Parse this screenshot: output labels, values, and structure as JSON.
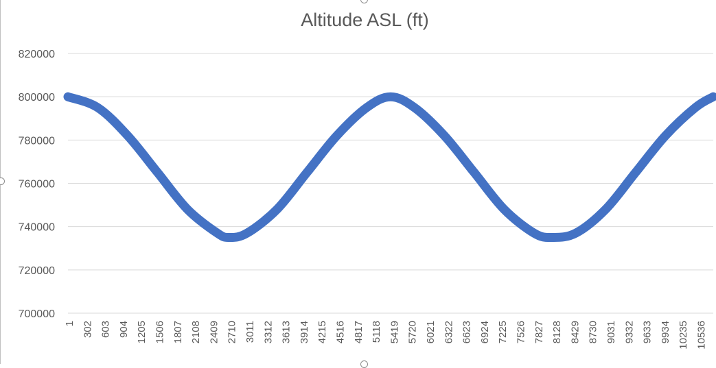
{
  "chart_data": {
    "type": "line",
    "title": "Altitude ASL (ft)",
    "xlabel": "",
    "ylabel": "",
    "ylim": [
      700000,
      820000
    ],
    "yticks": [
      700000,
      720000,
      740000,
      760000,
      780000,
      800000,
      820000
    ],
    "xticks": [
      "1",
      "302",
      "603",
      "904",
      "1205",
      "1506",
      "1807",
      "2108",
      "2409",
      "2710",
      "3011",
      "3312",
      "3613",
      "3914",
      "4215",
      "4516",
      "4817",
      "5118",
      "5419",
      "5720",
      "6021",
      "6322",
      "6623",
      "6924",
      "7225",
      "7526",
      "7827",
      "8128",
      "8429",
      "8730",
      "9031",
      "9332",
      "9633",
      "9934",
      "10235",
      "10536"
    ],
    "grid": "horizontal",
    "legend": "none",
    "series": [
      {
        "color": "#4472C4",
        "x": [
          1,
          500,
          1000,
          1500,
          2000,
          2500,
          2700,
          3000,
          3500,
          4000,
          4500,
          5000,
          5400,
          5800,
          6300,
          6800,
          7300,
          7800,
          8100,
          8500,
          9000,
          9500,
          10000,
          10500,
          10800
        ],
        "y": [
          800000,
          795000,
          782000,
          765000,
          748000,
          737000,
          735000,
          737000,
          748000,
          765000,
          782000,
          795000,
          800000,
          795000,
          782000,
          765000,
          748000,
          737000,
          735000,
          737000,
          748000,
          765000,
          782000,
          795000,
          800000
        ]
      }
    ]
  }
}
